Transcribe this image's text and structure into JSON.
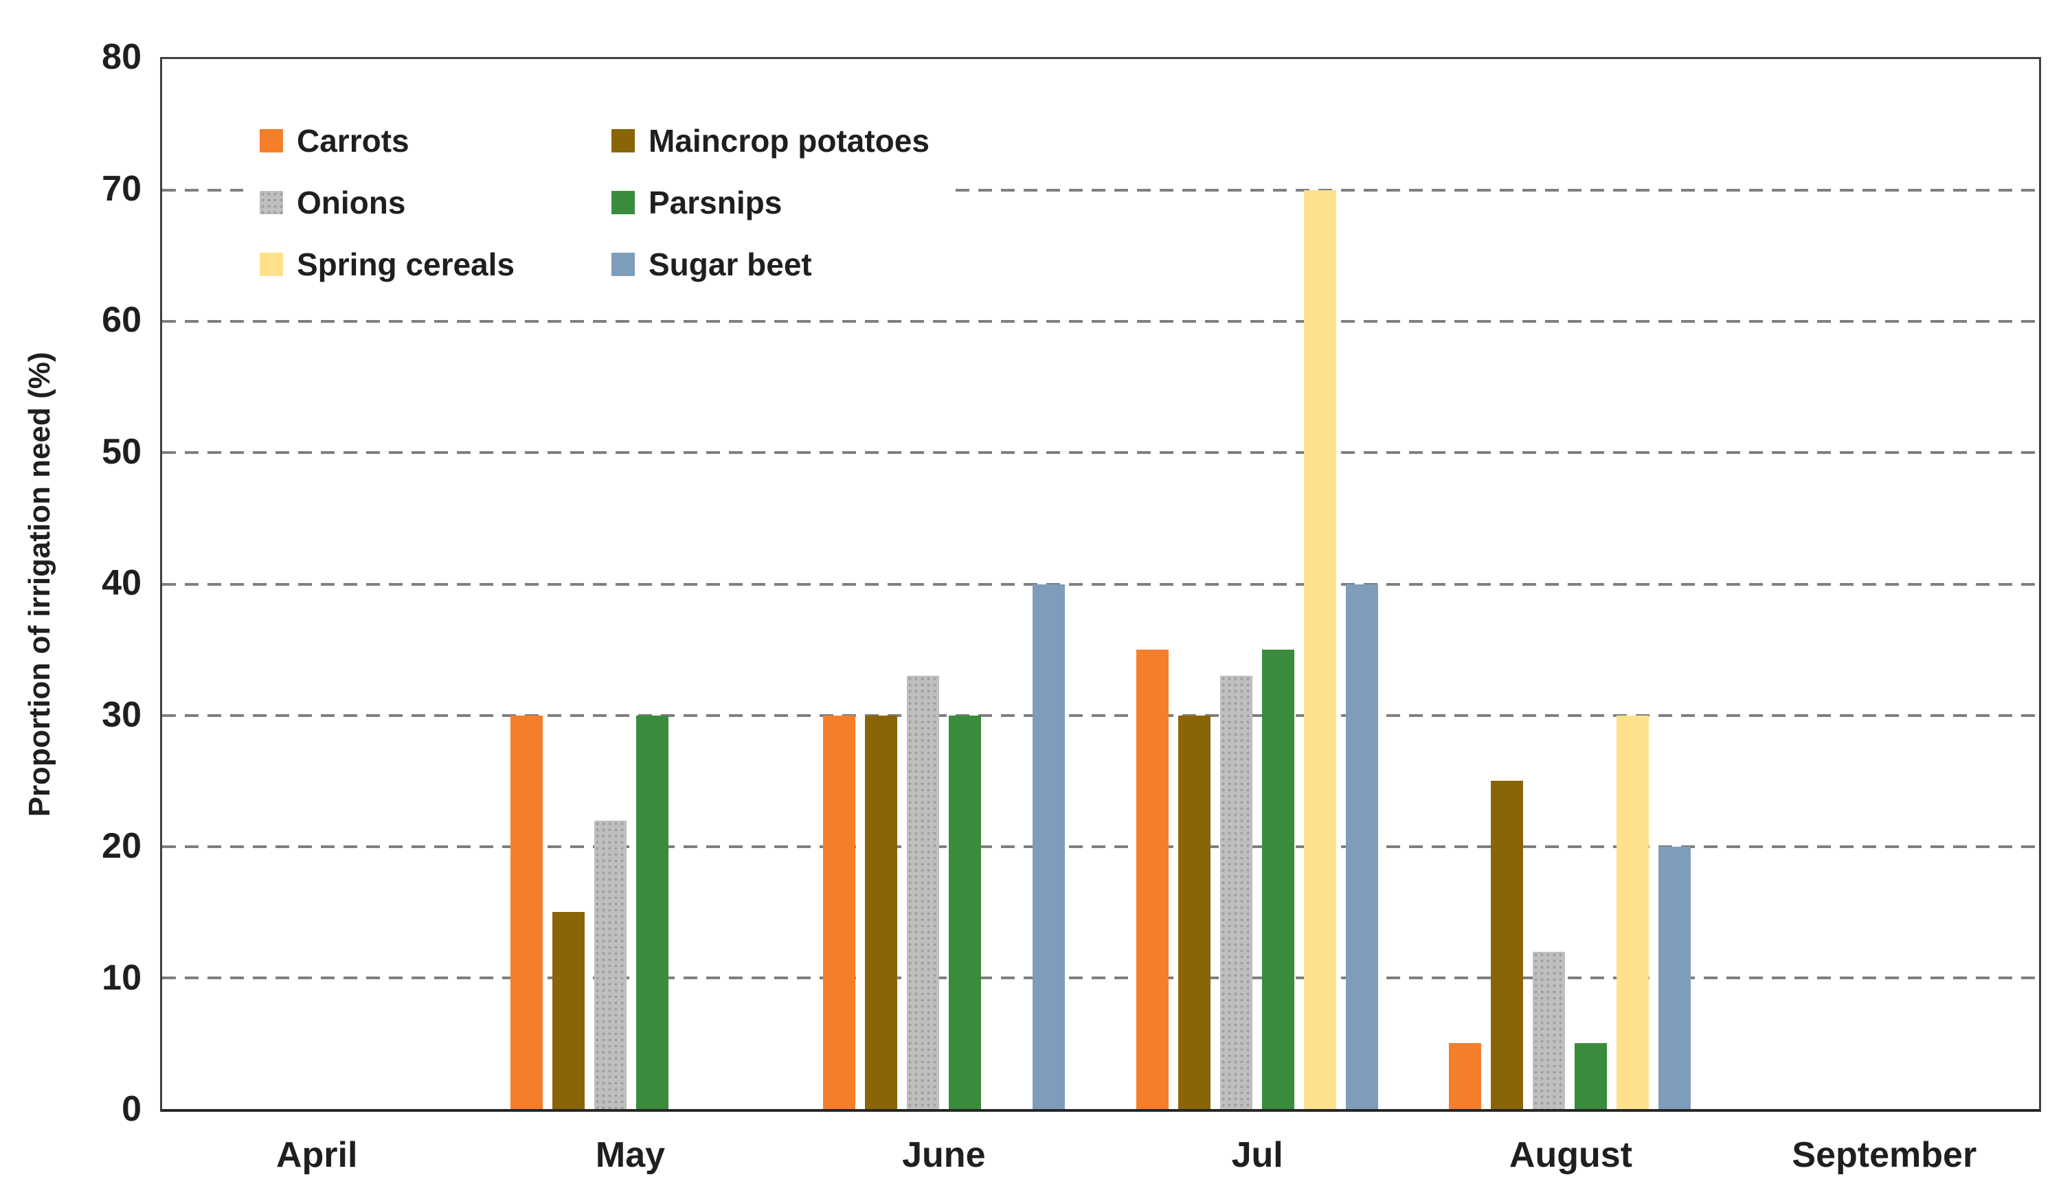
{
  "chart_data": {
    "type": "bar",
    "categories": [
      "April",
      "May",
      "June",
      "Jul",
      "August",
      "September"
    ],
    "series": [
      {
        "name": "Carrots",
        "color": "#F57E2A",
        "values": [
          0,
          30,
          30,
          35,
          5,
          0
        ]
      },
      {
        "name": "Maincrop potatoes",
        "color": "#8A6508",
        "values": [
          0,
          15,
          30,
          30,
          25,
          0
        ]
      },
      {
        "name": "Onions",
        "color": "#BFBFBF",
        "pattern": "dots",
        "values": [
          0,
          22,
          33,
          33,
          12,
          0
        ]
      },
      {
        "name": "Parsnips",
        "color": "#3A8C3D",
        "values": [
          0,
          30,
          30,
          35,
          5,
          0
        ]
      },
      {
        "name": "Spring cereals",
        "color": "#FFE08C",
        "values": [
          0,
          0,
          0,
          70,
          30,
          0
        ]
      },
      {
        "name": "Sugar beet",
        "color": "#7E9DBB",
        "values": [
          0,
          0,
          40,
          40,
          20,
          0
        ]
      }
    ],
    "title": "",
    "xlabel": "",
    "ylabel": "Proportion of irrigation need (%)",
    "ylim": [
      0,
      80
    ],
    "ytick_step": 10,
    "yticks": [
      0,
      10,
      20,
      30,
      40,
      50,
      60,
      70,
      80
    ],
    "grid": "horizontal-dashed",
    "gridline_color": "#7f7f7f",
    "legend_position": "inside-top-left",
    "legend_columns": [
      [
        "Carrots",
        "Onions",
        "Spring cereals"
      ],
      [
        "Maincrop potatoes",
        "Parsnips",
        "Sugar beet"
      ]
    ]
  }
}
